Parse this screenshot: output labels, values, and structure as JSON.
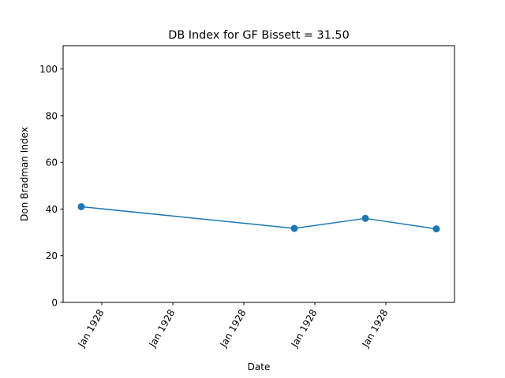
{
  "chart_data": {
    "type": "line",
    "title": "DB Index for GF Bissett = 31.50",
    "xlabel": "Date",
    "ylabel": "Don Bradman Index",
    "x_tick_labels": [
      "Jan 1928",
      "Jan 1928",
      "Jan 1928",
      "Jan 1928",
      "Jan 1928"
    ],
    "y_ticks": [
      0,
      20,
      40,
      60,
      80,
      100
    ],
    "ylim": [
      0,
      110
    ],
    "grid": false,
    "series": [
      {
        "color": "#1f77b4",
        "marker": "circle",
        "values": [
          41.0,
          31.7,
          36.0,
          31.5
        ]
      }
    ]
  }
}
